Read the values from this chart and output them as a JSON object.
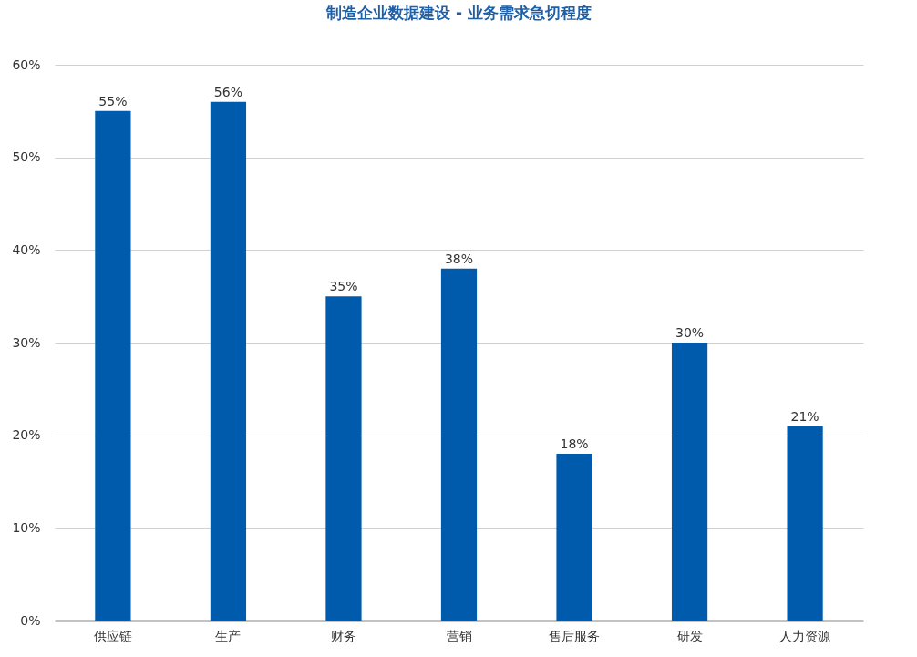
{
  "chart_data": {
    "type": "bar",
    "title": "制造企业数据建设 - 业务需求急切程度",
    "categories": [
      "供应链",
      "生产",
      "财务",
      "营销",
      "售后服务",
      "研发",
      "人力资源"
    ],
    "values": [
      55,
      56,
      35,
      38,
      18,
      30,
      21
    ],
    "color": "#005bac",
    "value_labels": [
      "55%",
      "56%",
      "35%",
      "38%",
      "18%",
      "30%",
      "21%"
    ],
    "ylim": [
      0,
      60
    ],
    "yticks": [
      {
        "value": 0,
        "label": "0%"
      },
      {
        "value": 10,
        "label": "10%"
      },
      {
        "value": 20,
        "label": "20%"
      },
      {
        "value": 30,
        "label": "30%"
      },
      {
        "value": 40,
        "label": "40%"
      },
      {
        "value": 50,
        "label": "50%"
      },
      {
        "value": 60,
        "label": "60%"
      }
    ],
    "grid": "y"
  }
}
